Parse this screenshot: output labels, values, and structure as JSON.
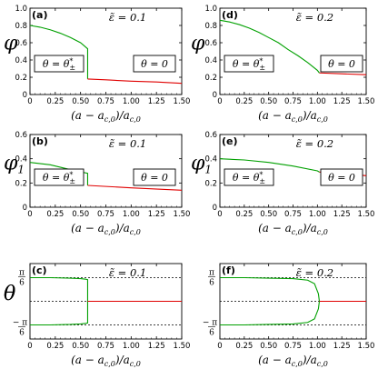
{
  "chart_data": [
    {
      "panel": "(a)",
      "type": "line",
      "annotation": "ε̃ = 0.1",
      "xlabel": "(a − a_c,0)/a_c,0",
      "ylabel": "φ",
      "xlim": [
        0,
        1.5
      ],
      "ylim": [
        0,
        1.0
      ],
      "xticks": [
        "0",
        "0.25",
        "0.50",
        "0.75",
        "1.00",
        "1.25",
        "1.50"
      ],
      "yticks": [
        "0",
        "0.2",
        "0.4",
        "0.6",
        "0.8",
        "1.0"
      ],
      "labels": [
        "θ = θ*±",
        "θ = 0"
      ],
      "series": [
        {
          "color": "#00a000",
          "x": [
            0,
            0.1,
            0.2,
            0.3,
            0.4,
            0.5,
            0.57,
            0.57
          ],
          "y": [
            0.8,
            0.78,
            0.75,
            0.71,
            0.66,
            0.6,
            0.53,
            0.18
          ]
        },
        {
          "color": "#e00000",
          "x": [
            0.57,
            0.75,
            1.0,
            1.25,
            1.5
          ],
          "y": [
            0.18,
            0.17,
            0.155,
            0.145,
            0.13
          ]
        }
      ]
    },
    {
      "panel": "(d)",
      "type": "line",
      "annotation": "ε̃ = 0.2",
      "xlabel": "(a − a_c,0)/a_c,0",
      "ylabel": "",
      "xlim": [
        0,
        1.5
      ],
      "ylim": [
        0,
        1.0
      ],
      "xticks": [
        "0",
        "0.25",
        "0.50",
        "0.75",
        "1.00",
        "1.25",
        "1.50"
      ],
      "yticks": [
        "0",
        "0.2",
        "0.4",
        "0.6",
        "0.8",
        "1.0"
      ],
      "labels": [
        "θ = θ*±",
        "θ = 0"
      ],
      "series": [
        {
          "color": "#00a000",
          "x": [
            0,
            0.1,
            0.2,
            0.3,
            0.4,
            0.5,
            0.6,
            0.7,
            0.8,
            0.9,
            1.0,
            1.02
          ],
          "y": [
            0.86,
            0.84,
            0.81,
            0.77,
            0.72,
            0.66,
            0.6,
            0.52,
            0.45,
            0.37,
            0.28,
            0.25
          ]
        },
        {
          "color": "#e00000",
          "x": [
            1.02,
            1.25,
            1.5
          ],
          "y": [
            0.25,
            0.24,
            0.23
          ]
        }
      ]
    },
    {
      "panel": "(b)",
      "type": "line",
      "annotation": "ε̃ = 0.1",
      "xlabel": "(a − a_c,0)/a_c,0",
      "ylabel": "φ1",
      "xlim": [
        0,
        1.5
      ],
      "ylim": [
        0,
        0.6
      ],
      "xticks": [
        "0",
        "0.25",
        "0.50",
        "0.75",
        "1.00",
        "1.25",
        "1.50"
      ],
      "yticks": [
        "0",
        "0.2",
        "0.4",
        "0.6"
      ],
      "labels": [
        "θ = θ*±",
        "θ = 0"
      ],
      "series": [
        {
          "color": "#00a000",
          "x": [
            0,
            0.2,
            0.4,
            0.57,
            0.57
          ],
          "y": [
            0.37,
            0.35,
            0.31,
            0.28,
            0.18
          ]
        },
        {
          "color": "#e00000",
          "x": [
            0.57,
            1.0,
            1.5
          ],
          "y": [
            0.18,
            0.16,
            0.14
          ]
        }
      ]
    },
    {
      "panel": "(e)",
      "type": "line",
      "annotation": "ε̃ = 0.2",
      "xlabel": "(a − a_c,0)/a_c,0",
      "ylabel": "",
      "xlim": [
        0,
        1.5
      ],
      "ylim": [
        0,
        0.6
      ],
      "xticks": [
        "0",
        "0.25",
        "0.50",
        "0.75",
        "1.00",
        "1.25",
        "1.50"
      ],
      "yticks": [
        "0",
        "0.2",
        "0.4",
        "0.6"
      ],
      "labels": [
        "θ = θ*±",
        "θ = 0"
      ],
      "series": [
        {
          "color": "#00a000",
          "x": [
            0,
            0.25,
            0.5,
            0.75,
            1.0,
            1.02
          ],
          "y": [
            0.4,
            0.39,
            0.37,
            0.34,
            0.3,
            0.29
          ]
        },
        {
          "color": "#e00000",
          "x": [
            1.02,
            1.25,
            1.5
          ],
          "y": [
            0.29,
            0.28,
            0.26
          ]
        }
      ]
    },
    {
      "panel": "(c)",
      "type": "line",
      "annotation": "ε̃ = 0.1",
      "xlabel": "(a − a_c,0)/a_c,0",
      "ylabel": "θ",
      "xlim": [
        0,
        1.5
      ],
      "ylim": [
        -0.75,
        0.75
      ],
      "xticks": [
        "0",
        "0.25",
        "0.50",
        "0.75",
        "1.00",
        "1.25",
        "1.50"
      ],
      "ytick_labels": {
        "top": "π/6",
        "bottom": "−π/6"
      },
      "series": [
        {
          "color": "#00a000",
          "x": [
            0,
            0.2,
            0.4,
            0.5,
            0.55,
            0.57,
            0.57,
            0.55,
            0.5,
            0.4,
            0.2,
            0
          ],
          "y": [
            0.47,
            0.47,
            0.46,
            0.45,
            0.44,
            0.43,
            -0.43,
            -0.44,
            -0.45,
            -0.46,
            -0.47,
            -0.47
          ]
        },
        {
          "color": "#e00000",
          "x": [
            0.57,
            1.5
          ],
          "y": [
            0,
            0
          ]
        }
      ]
    },
    {
      "panel": "(f)",
      "type": "line",
      "annotation": "ε̃ = 0.2",
      "xlabel": "(a − a_c,0)/a_c,0",
      "ylabel": "θ",
      "xlim": [
        0,
        1.5
      ],
      "ylim": [
        -0.75,
        0.75
      ],
      "xticks": [
        "0",
        "0.25",
        "0.50",
        "0.75",
        "1.00",
        "1.25",
        "1.50"
      ],
      "ytick_labels": {
        "top": "π/6",
        "bottom": "−π/6"
      },
      "series": [
        {
          "color": "#00a000",
          "x": [
            0,
            0.25,
            0.5,
            0.75,
            0.9,
            0.97,
            1.01,
            1.02,
            1.01,
            0.97,
            0.9,
            0.75,
            0.5,
            0.25,
            0
          ],
          "y": [
            0.47,
            0.47,
            0.46,
            0.45,
            0.42,
            0.35,
            0.15,
            0,
            -0.15,
            -0.35,
            -0.42,
            -0.45,
            -0.46,
            -0.47,
            -0.47
          ]
        },
        {
          "color": "#e00000",
          "x": [
            1.02,
            1.5
          ],
          "y": [
            0,
            0
          ]
        }
      ]
    }
  ]
}
